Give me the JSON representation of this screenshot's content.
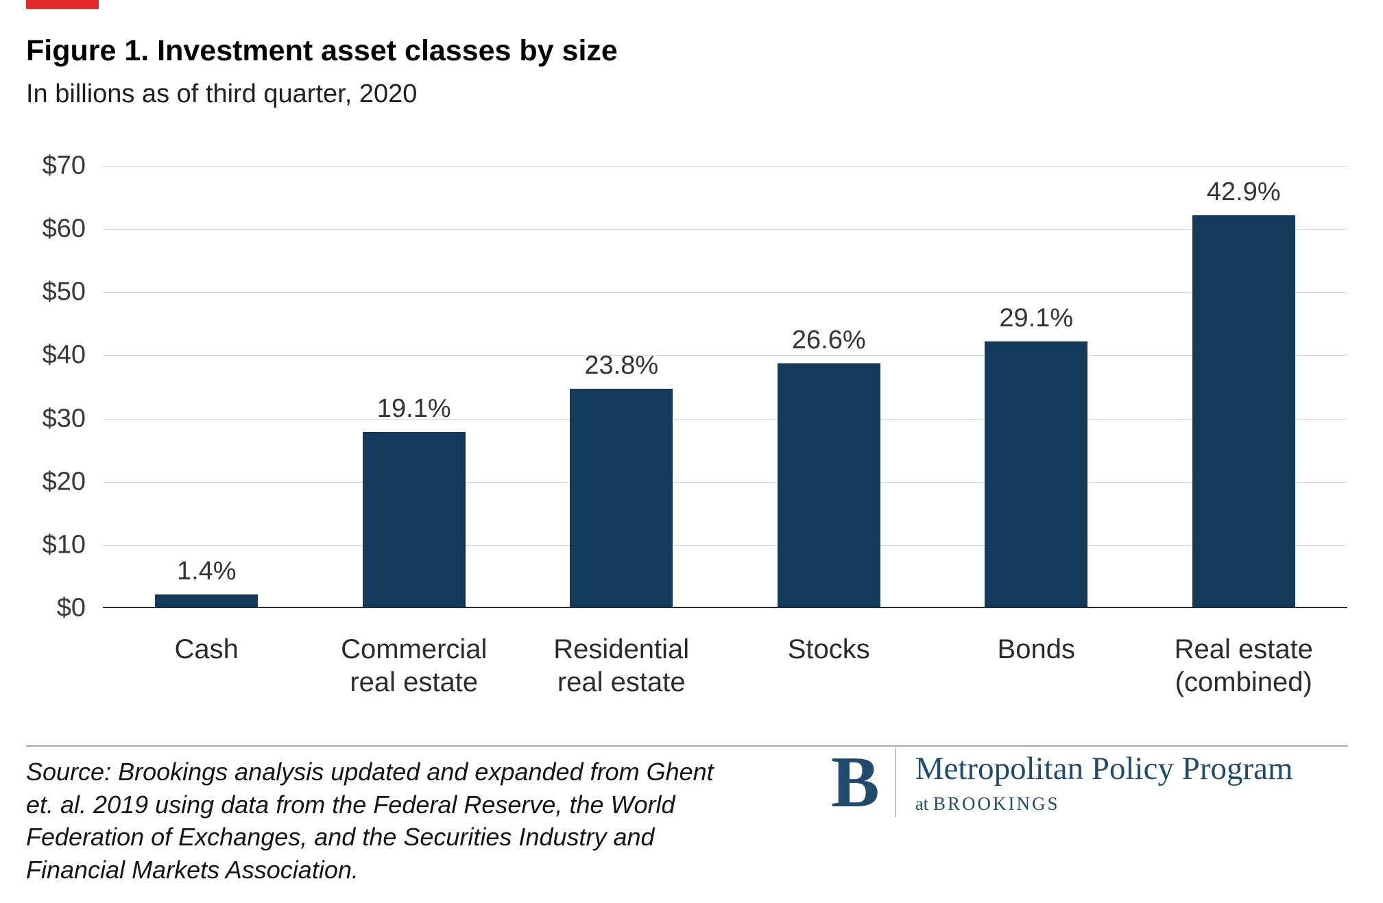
{
  "page": {
    "title": "Figure 1. Investment asset classes by size",
    "subtitle": "In billions as of third quarter, 2020"
  },
  "chart_data": {
    "type": "bar",
    "title": "Figure 1. Investment asset classes by size",
    "subtitle": "In billions as of third quarter, 2020",
    "categories": [
      "Cash",
      "Commercial real estate",
      "Residential real estate",
      "Stocks",
      "Bonds",
      "Real estate (combined)"
    ],
    "category_lines": [
      [
        "Cash"
      ],
      [
        "Commercial",
        "real estate"
      ],
      [
        "Residential",
        "real estate"
      ],
      [
        "Stocks"
      ],
      [
        "Bonds"
      ],
      [
        "Real estate",
        "(combined)"
      ]
    ],
    "values": [
      2,
      27.7,
      34.5,
      38.5,
      42,
      62
    ],
    "bar_labels": [
      "1.4%",
      "19.1%",
      "23.8%",
      "26.6%",
      "29.1%",
      "42.9%"
    ],
    "y_ticks": [
      "$0",
      "$10",
      "$20",
      "$30",
      "$40",
      "$50",
      "$60",
      "$70"
    ],
    "ylim": [
      0,
      70
    ],
    "grid": true,
    "legend": false,
    "bar_color": "#133A5C"
  },
  "footer": {
    "source_lines": [
      "Source: Brookings analysis updated and expanded from Ghent",
      "et. al. 2019 using data from the Federal Reserve, the World",
      "Federation of Exchanges, and the Securities Industry and",
      "Financial Markets Association."
    ],
    "logo": {
      "letter": "B",
      "program": "Metropolitan Policy Program",
      "sub_prefix": "at",
      "sub_name": "BROOKINGS"
    }
  },
  "colors": {
    "bar": "#133A5C",
    "accent_red": "#E02827",
    "logo_navy": "#1E4B6E",
    "gridline": "#D9D9D9",
    "axis_line": "#2A2A2A"
  }
}
